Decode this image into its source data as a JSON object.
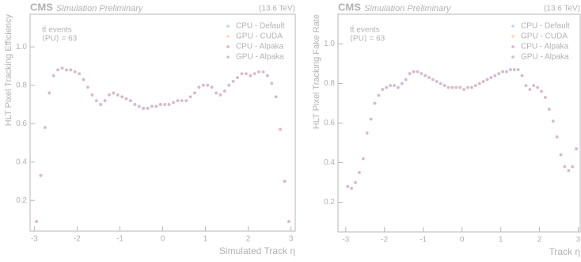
{
  "chart_data": [
    {
      "type": "scatter",
      "experiment": "CMS",
      "subtitle": "Simulation Preliminary",
      "energy": "(13.6 TeV)",
      "annotations": [
        "tt̄ events",
        "⟨PU⟩ = 63"
      ],
      "xlabel": "Simulated Track η",
      "ylabel": "HLT Pixel Tracking Efficiency",
      "xlim": [
        -3.1,
        3.1
      ],
      "ylim": [
        0.04,
        1.17
      ],
      "xticks": [
        -3,
        -2,
        -1,
        0,
        1,
        2,
        3
      ],
      "yticks": [
        0.2,
        0.4,
        0.6,
        0.8,
        {
          "value": 1,
          "label": "1.0"
        }
      ],
      "legend": "upper right",
      "x": [
        -2.95,
        -2.85,
        -2.75,
        -2.65,
        -2.55,
        -2.45,
        -2.35,
        -2.25,
        -2.15,
        -2.05,
        -1.95,
        -1.85,
        -1.75,
        -1.65,
        -1.55,
        -1.45,
        -1.35,
        -1.25,
        -1.15,
        -1.05,
        -0.95,
        -0.85,
        -0.75,
        -0.65,
        -0.55,
        -0.45,
        -0.35,
        -0.25,
        -0.15,
        -0.05,
        0.05,
        0.15,
        0.25,
        0.35,
        0.45,
        0.55,
        0.65,
        0.75,
        0.85,
        0.95,
        1.05,
        1.15,
        1.25,
        1.35,
        1.45,
        1.55,
        1.65,
        1.75,
        1.85,
        1.95,
        2.05,
        2.15,
        2.25,
        2.35,
        2.45,
        2.55,
        2.65,
        2.75,
        2.85,
        2.95
      ],
      "series": [
        {
          "name": "CPU - Default",
          "color": "#5790fc",
          "values": [
            0.09,
            0.33,
            0.58,
            0.76,
            0.85,
            0.88,
            0.89,
            0.88,
            0.88,
            0.87,
            0.86,
            0.83,
            0.79,
            0.75,
            0.72,
            0.7,
            0.72,
            0.75,
            0.76,
            0.75,
            0.74,
            0.73,
            0.72,
            0.7,
            0.69,
            0.68,
            0.68,
            0.69,
            0.69,
            0.7,
            0.7,
            0.7,
            0.71,
            0.72,
            0.72,
            0.72,
            0.74,
            0.76,
            0.79,
            0.8,
            0.8,
            0.79,
            0.76,
            0.75,
            0.77,
            0.8,
            0.82,
            0.84,
            0.86,
            0.86,
            0.85,
            0.86,
            0.87,
            0.87,
            0.85,
            0.81,
            0.74,
            0.57,
            0.3,
            0.09
          ]
        },
        {
          "name": "GPU - CUDA",
          "color": "#f89c20",
          "values": [
            0.09,
            0.33,
            0.58,
            0.76,
            0.85,
            0.88,
            0.89,
            0.88,
            0.88,
            0.87,
            0.86,
            0.83,
            0.79,
            0.75,
            0.72,
            0.7,
            0.72,
            0.75,
            0.76,
            0.75,
            0.74,
            0.73,
            0.72,
            0.7,
            0.69,
            0.68,
            0.68,
            0.69,
            0.69,
            0.7,
            0.7,
            0.7,
            0.71,
            0.72,
            0.72,
            0.72,
            0.74,
            0.76,
            0.79,
            0.8,
            0.8,
            0.79,
            0.76,
            0.75,
            0.77,
            0.8,
            0.82,
            0.84,
            0.86,
            0.86,
            0.85,
            0.86,
            0.87,
            0.87,
            0.85,
            0.81,
            0.74,
            0.57,
            0.3,
            0.09
          ]
        },
        {
          "name": "CPU - Alpaka",
          "color": "#e42536",
          "values": [
            0.09,
            0.33,
            0.58,
            0.76,
            0.85,
            0.88,
            0.89,
            0.88,
            0.88,
            0.87,
            0.86,
            0.83,
            0.79,
            0.75,
            0.72,
            0.7,
            0.72,
            0.75,
            0.76,
            0.75,
            0.74,
            0.73,
            0.72,
            0.7,
            0.69,
            0.68,
            0.68,
            0.69,
            0.69,
            0.7,
            0.7,
            0.7,
            0.71,
            0.72,
            0.72,
            0.72,
            0.74,
            0.76,
            0.79,
            0.8,
            0.8,
            0.79,
            0.76,
            0.75,
            0.77,
            0.8,
            0.82,
            0.84,
            0.86,
            0.86,
            0.85,
            0.86,
            0.87,
            0.87,
            0.85,
            0.81,
            0.74,
            0.57,
            0.3,
            0.09
          ]
        },
        {
          "name": "GPU - Alpaka",
          "color": "#964a8b",
          "values": [
            0.09,
            0.33,
            0.58,
            0.76,
            0.85,
            0.88,
            0.89,
            0.88,
            0.88,
            0.87,
            0.86,
            0.83,
            0.79,
            0.75,
            0.72,
            0.7,
            0.72,
            0.75,
            0.76,
            0.75,
            0.74,
            0.73,
            0.72,
            0.7,
            0.69,
            0.68,
            0.68,
            0.69,
            0.69,
            0.7,
            0.7,
            0.7,
            0.71,
            0.72,
            0.72,
            0.72,
            0.74,
            0.76,
            0.79,
            0.8,
            0.8,
            0.79,
            0.76,
            0.75,
            0.77,
            0.8,
            0.82,
            0.84,
            0.86,
            0.86,
            0.85,
            0.86,
            0.87,
            0.87,
            0.85,
            0.81,
            0.74,
            0.57,
            0.3,
            0.09
          ]
        }
      ]
    },
    {
      "type": "scatter",
      "experiment": "CMS",
      "subtitle": "Simulation Preliminary",
      "energy": "(13.6 TeV)",
      "annotations": [
        "tt̄ events",
        "⟨PU⟩ = 63"
      ],
      "xlabel": "Track η",
      "ylabel": "HLT Pixel Tracking Fake Rate",
      "xlim": [
        -3.2,
        3.05
      ],
      "ylim": [
        0.05,
        1.15
      ],
      "xticks": [
        -3,
        -2,
        -1,
        0,
        1,
        2,
        3
      ],
      "yticks": [
        0.2,
        0.4,
        0.6,
        0.8,
        {
          "value": 1,
          "label": "1.0"
        }
      ],
      "legend": "upper right",
      "x": [
        -2.95,
        -2.85,
        -2.75,
        -2.65,
        -2.55,
        -2.45,
        -2.35,
        -2.25,
        -2.15,
        -2.05,
        -1.95,
        -1.85,
        -1.75,
        -1.65,
        -1.55,
        -1.45,
        -1.35,
        -1.25,
        -1.15,
        -1.05,
        -0.95,
        -0.85,
        -0.75,
        -0.65,
        -0.55,
        -0.45,
        -0.35,
        -0.25,
        -0.15,
        -0.05,
        0.05,
        0.15,
        0.25,
        0.35,
        0.45,
        0.55,
        0.65,
        0.75,
        0.85,
        0.95,
        1.05,
        1.15,
        1.25,
        1.35,
        1.45,
        1.55,
        1.65,
        1.75,
        1.85,
        1.95,
        2.05,
        2.15,
        2.25,
        2.35,
        2.45,
        2.55,
        2.65,
        2.75,
        2.85,
        2.95
      ],
      "series": [
        {
          "name": "CPU - Default",
          "color": "#5790fc",
          "values": [
            0.28,
            0.27,
            0.3,
            0.35,
            0.42,
            0.55,
            0.62,
            0.7,
            0.74,
            0.77,
            0.78,
            0.79,
            0.79,
            0.78,
            0.8,
            0.82,
            0.85,
            0.86,
            0.86,
            0.85,
            0.84,
            0.83,
            0.82,
            0.81,
            0.8,
            0.79,
            0.78,
            0.78,
            0.78,
            0.78,
            0.77,
            0.78,
            0.78,
            0.79,
            0.8,
            0.81,
            0.82,
            0.83,
            0.84,
            0.85,
            0.86,
            0.86,
            0.87,
            0.87,
            0.87,
            0.84,
            0.79,
            0.77,
            0.79,
            0.78,
            0.76,
            0.73,
            0.67,
            0.61,
            0.53,
            0.44,
            0.38,
            0.36,
            0.38,
            0.47
          ]
        },
        {
          "name": "GPU - CUDA",
          "color": "#f89c20",
          "values": [
            0.28,
            0.27,
            0.3,
            0.35,
            0.42,
            0.55,
            0.62,
            0.7,
            0.74,
            0.77,
            0.78,
            0.79,
            0.79,
            0.78,
            0.8,
            0.82,
            0.85,
            0.86,
            0.86,
            0.85,
            0.84,
            0.83,
            0.82,
            0.81,
            0.8,
            0.79,
            0.78,
            0.78,
            0.78,
            0.78,
            0.77,
            0.78,
            0.78,
            0.79,
            0.8,
            0.81,
            0.82,
            0.83,
            0.84,
            0.85,
            0.86,
            0.86,
            0.87,
            0.87,
            0.87,
            0.84,
            0.79,
            0.77,
            0.79,
            0.78,
            0.76,
            0.73,
            0.67,
            0.61,
            0.53,
            0.44,
            0.38,
            0.36,
            0.38,
            0.47
          ]
        },
        {
          "name": "CPU - Alpaka",
          "color": "#e42536",
          "values": [
            0.28,
            0.27,
            0.3,
            0.35,
            0.42,
            0.55,
            0.62,
            0.7,
            0.74,
            0.77,
            0.78,
            0.79,
            0.79,
            0.78,
            0.8,
            0.82,
            0.85,
            0.86,
            0.86,
            0.85,
            0.84,
            0.83,
            0.82,
            0.81,
            0.8,
            0.79,
            0.78,
            0.78,
            0.78,
            0.78,
            0.77,
            0.78,
            0.78,
            0.79,
            0.8,
            0.81,
            0.82,
            0.83,
            0.84,
            0.85,
            0.86,
            0.86,
            0.87,
            0.87,
            0.87,
            0.84,
            0.79,
            0.77,
            0.79,
            0.78,
            0.76,
            0.73,
            0.67,
            0.61,
            0.53,
            0.44,
            0.38,
            0.36,
            0.38,
            0.47
          ]
        },
        {
          "name": "GPU - Alpaka",
          "color": "#964a8b",
          "values": [
            0.28,
            0.27,
            0.3,
            0.35,
            0.42,
            0.55,
            0.62,
            0.7,
            0.74,
            0.77,
            0.78,
            0.79,
            0.79,
            0.78,
            0.8,
            0.82,
            0.85,
            0.86,
            0.86,
            0.85,
            0.84,
            0.83,
            0.82,
            0.81,
            0.8,
            0.79,
            0.78,
            0.78,
            0.78,
            0.78,
            0.77,
            0.78,
            0.78,
            0.79,
            0.8,
            0.81,
            0.82,
            0.83,
            0.84,
            0.85,
            0.86,
            0.86,
            0.87,
            0.87,
            0.87,
            0.84,
            0.79,
            0.77,
            0.79,
            0.78,
            0.76,
            0.73,
            0.67,
            0.61,
            0.53,
            0.44,
            0.38,
            0.36,
            0.38,
            0.47
          ]
        }
      ]
    }
  ]
}
